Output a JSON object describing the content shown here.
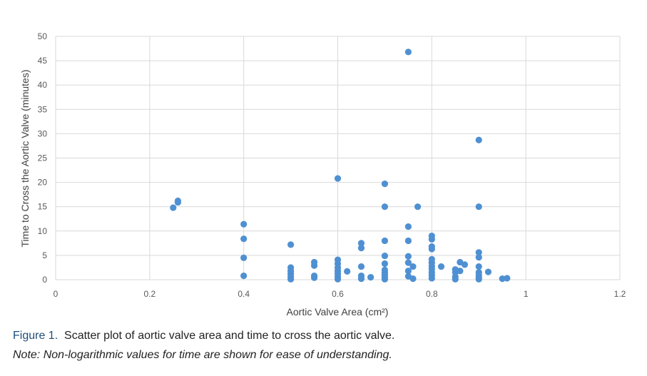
{
  "chart_data": {
    "type": "scatter",
    "xlabel": "Aortic Valve Area (cm²)",
    "ylabel": "Time to Cross the Aortic Valve  (minutes)",
    "xlim": [
      0,
      1.2
    ],
    "ylim": [
      0,
      50
    ],
    "xticks": [
      "0",
      "0.2",
      "0.4",
      "0.6",
      "0.8",
      "1",
      "1.2"
    ],
    "yticks": [
      "0",
      "5",
      "10",
      "15",
      "20",
      "25",
      "30",
      "35",
      "40",
      "45",
      "50"
    ],
    "grid": true,
    "legend": "none",
    "point_color": "#4f90d2",
    "points": [
      [
        0.25,
        14.8
      ],
      [
        0.26,
        15.9
      ],
      [
        0.26,
        16.2
      ],
      [
        0.4,
        11.4
      ],
      [
        0.4,
        8.4
      ],
      [
        0.4,
        4.5
      ],
      [
        0.4,
        0.8
      ],
      [
        0.5,
        7.2
      ],
      [
        0.5,
        2.5
      ],
      [
        0.5,
        1.8
      ],
      [
        0.5,
        1.2
      ],
      [
        0.5,
        0.6
      ],
      [
        0.5,
        0.1
      ],
      [
        0.55,
        3.6
      ],
      [
        0.55,
        2.9
      ],
      [
        0.55,
        0.8
      ],
      [
        0.55,
        0.4
      ],
      [
        0.6,
        20.8
      ],
      [
        0.6,
        4.1
      ],
      [
        0.6,
        3.3
      ],
      [
        0.6,
        2.5
      ],
      [
        0.6,
        1.8
      ],
      [
        0.6,
        1.2
      ],
      [
        0.6,
        0.6
      ],
      [
        0.6,
        0.1
      ],
      [
        0.62,
        1.7
      ],
      [
        0.65,
        7.5
      ],
      [
        0.65,
        6.5
      ],
      [
        0.65,
        2.7
      ],
      [
        0.65,
        0.8
      ],
      [
        0.65,
        0.2
      ],
      [
        0.67,
        0.5
      ],
      [
        0.7,
        19.7
      ],
      [
        0.7,
        15.0
      ],
      [
        0.7,
        8.0
      ],
      [
        0.7,
        4.9
      ],
      [
        0.7,
        3.3
      ],
      [
        0.7,
        2.0
      ],
      [
        0.7,
        1.5
      ],
      [
        0.7,
        1.0
      ],
      [
        0.7,
        0.5
      ],
      [
        0.7,
        0.1
      ],
      [
        0.75,
        46.8
      ],
      [
        0.75,
        10.9
      ],
      [
        0.75,
        8.0
      ],
      [
        0.75,
        4.8
      ],
      [
        0.75,
        3.5
      ],
      [
        0.75,
        1.8
      ],
      [
        0.75,
        0.7
      ],
      [
        0.76,
        2.7
      ],
      [
        0.76,
        0.2
      ],
      [
        0.77,
        15.0
      ],
      [
        0.8,
        9.0
      ],
      [
        0.8,
        8.3
      ],
      [
        0.8,
        6.8
      ],
      [
        0.8,
        6.3
      ],
      [
        0.8,
        4.2
      ],
      [
        0.8,
        3.5
      ],
      [
        0.8,
        2.8
      ],
      [
        0.8,
        2.2
      ],
      [
        0.8,
        1.5
      ],
      [
        0.8,
        0.9
      ],
      [
        0.8,
        0.3
      ],
      [
        0.82,
        2.7
      ],
      [
        0.85,
        2.1
      ],
      [
        0.85,
        1.5
      ],
      [
        0.85,
        0.6
      ],
      [
        0.85,
        0.1
      ],
      [
        0.86,
        3.6
      ],
      [
        0.86,
        1.8
      ],
      [
        0.87,
        3.1
      ],
      [
        0.9,
        28.7
      ],
      [
        0.9,
        15.0
      ],
      [
        0.9,
        5.6
      ],
      [
        0.9,
        4.6
      ],
      [
        0.9,
        2.7
      ],
      [
        0.9,
        1.5
      ],
      [
        0.9,
        0.9
      ],
      [
        0.9,
        0.4
      ],
      [
        0.9,
        0.1
      ],
      [
        0.92,
        1.6
      ],
      [
        0.95,
        0.2
      ],
      [
        0.96,
        0.3
      ]
    ]
  },
  "caption": {
    "figure_label": "Figure 1.",
    "text": "Scatter plot of aortic valve area and time to cross the aortic valve.",
    "note": "Note: Non-logarithmic values for time are shown for ease of understanding."
  }
}
